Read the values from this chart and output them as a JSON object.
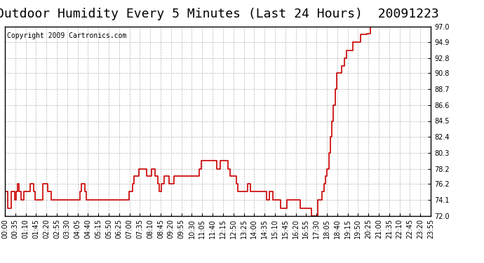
{
  "title": "Outdoor Humidity Every 5 Minutes (Last 24 Hours)  20091223",
  "copyright": "Copyright 2009 Cartronics.com",
  "line_color": "#cc0000",
  "background_color": "#ffffff",
  "plot_bg_color": "#ffffff",
  "grid_color": "#888888",
  "ylim": [
    72.0,
    97.0
  ],
  "yticks": [
    72.0,
    74.1,
    76.2,
    78.2,
    80.3,
    82.4,
    84.5,
    86.6,
    88.7,
    90.8,
    92.8,
    94.9,
    97.0
  ],
  "title_fontsize": 13,
  "copyright_fontsize": 7,
  "tick_fontsize": 7,
  "humidity_data": [
    75.2,
    75.2,
    73.0,
    73.0,
    75.2,
    75.2,
    74.1,
    75.2,
    76.2,
    75.2,
    74.1,
    74.1,
    75.2,
    75.2,
    75.2,
    75.2,
    76.2,
    76.2,
    75.2,
    74.1,
    74.1,
    74.1,
    74.1,
    74.1,
    76.2,
    76.2,
    76.2,
    75.2,
    75.2,
    74.1,
    74.1,
    74.1,
    74.1,
    74.1,
    74.1,
    74.1,
    74.1,
    74.1,
    74.1,
    74.1,
    74.1,
    74.1,
    74.1,
    74.1,
    74.1,
    74.1,
    74.1,
    75.2,
    76.2,
    76.2,
    75.2,
    74.1,
    74.1,
    74.1,
    74.1,
    74.1,
    74.1,
    74.1,
    74.1,
    74.1,
    74.1,
    74.1,
    74.1,
    74.1,
    74.1,
    74.1,
    74.1,
    74.1,
    74.1,
    74.1,
    74.1,
    74.1,
    74.1,
    74.1,
    74.1,
    74.1,
    74.1,
    74.1,
    75.2,
    75.2,
    76.2,
    77.2,
    77.2,
    77.2,
    78.2,
    78.2,
    78.2,
    78.2,
    78.2,
    77.2,
    77.2,
    77.2,
    78.2,
    78.2,
    77.2,
    77.2,
    76.2,
    75.2,
    76.2,
    76.2,
    77.2,
    77.2,
    77.2,
    76.2,
    76.2,
    76.2,
    77.2,
    77.2,
    77.2,
    77.2,
    77.2,
    77.2,
    77.2,
    77.2,
    77.2,
    77.2,
    77.2,
    77.2,
    77.2,
    77.2,
    77.2,
    77.2,
    78.2,
    79.3,
    79.3,
    79.3,
    79.3,
    79.3,
    79.3,
    79.3,
    79.3,
    79.3,
    79.3,
    78.2,
    78.2,
    79.3,
    79.3,
    79.3,
    79.3,
    79.3,
    78.2,
    77.2,
    77.2,
    77.2,
    77.2,
    76.2,
    75.2,
    75.2,
    75.2,
    75.2,
    75.2,
    75.2,
    76.2,
    76.2,
    75.2,
    75.2,
    75.2,
    75.2,
    75.2,
    75.2,
    75.2,
    75.2,
    75.2,
    75.2,
    74.1,
    74.1,
    75.2,
    75.2,
    74.1,
    74.1,
    74.1,
    74.1,
    74.1,
    73.0,
    73.0,
    73.0,
    73.0,
    74.1,
    74.1,
    74.1,
    74.1,
    74.1,
    74.1,
    74.1,
    74.1,
    73.0,
    73.0,
    73.0,
    73.0,
    73.0,
    73.0,
    73.0,
    72.0,
    72.0,
    72.0,
    72.0,
    74.1,
    74.1,
    74.1,
    75.2,
    76.2,
    77.2,
    78.2,
    80.3,
    82.4,
    84.5,
    86.6,
    88.7,
    90.8,
    90.8,
    90.8,
    91.8,
    91.8,
    92.8,
    93.8,
    93.8,
    93.8,
    93.8,
    94.9,
    94.9,
    94.9,
    94.9,
    94.9,
    95.9,
    95.9,
    95.9,
    95.9,
    96.0,
    96.0,
    97.0,
    97.0,
    97.0,
    97.0,
    97.0,
    97.0,
    97.0,
    97.0,
    97.0,
    97.0,
    97.0,
    97.0,
    97.0,
    97.0,
    97.0,
    97.0,
    97.0,
    97.0,
    97.0,
    97.0,
    97.0,
    97.0,
    97.0,
    97.0,
    97.0,
    97.0,
    97.0,
    97.0,
    97.0,
    97.0,
    97.0,
    97.0,
    97.0,
    97.0,
    97.0,
    97.0,
    97.0,
    97.0,
    97.0
  ],
  "xtick_labels": [
    "00:00",
    "00:35",
    "01:10",
    "01:45",
    "02:20",
    "02:55",
    "03:30",
    "04:05",
    "04:40",
    "05:15",
    "05:50",
    "06:25",
    "07:00",
    "07:35",
    "08:10",
    "08:45",
    "09:20",
    "09:55",
    "10:30",
    "11:05",
    "11:40",
    "12:15",
    "12:50",
    "13:25",
    "14:00",
    "14:35",
    "15:10",
    "15:45",
    "16:20",
    "16:55",
    "17:30",
    "18:05",
    "18:40",
    "19:15",
    "19:50",
    "20:25",
    "21:00",
    "21:35",
    "22:10",
    "22:45",
    "23:20",
    "23:55"
  ]
}
